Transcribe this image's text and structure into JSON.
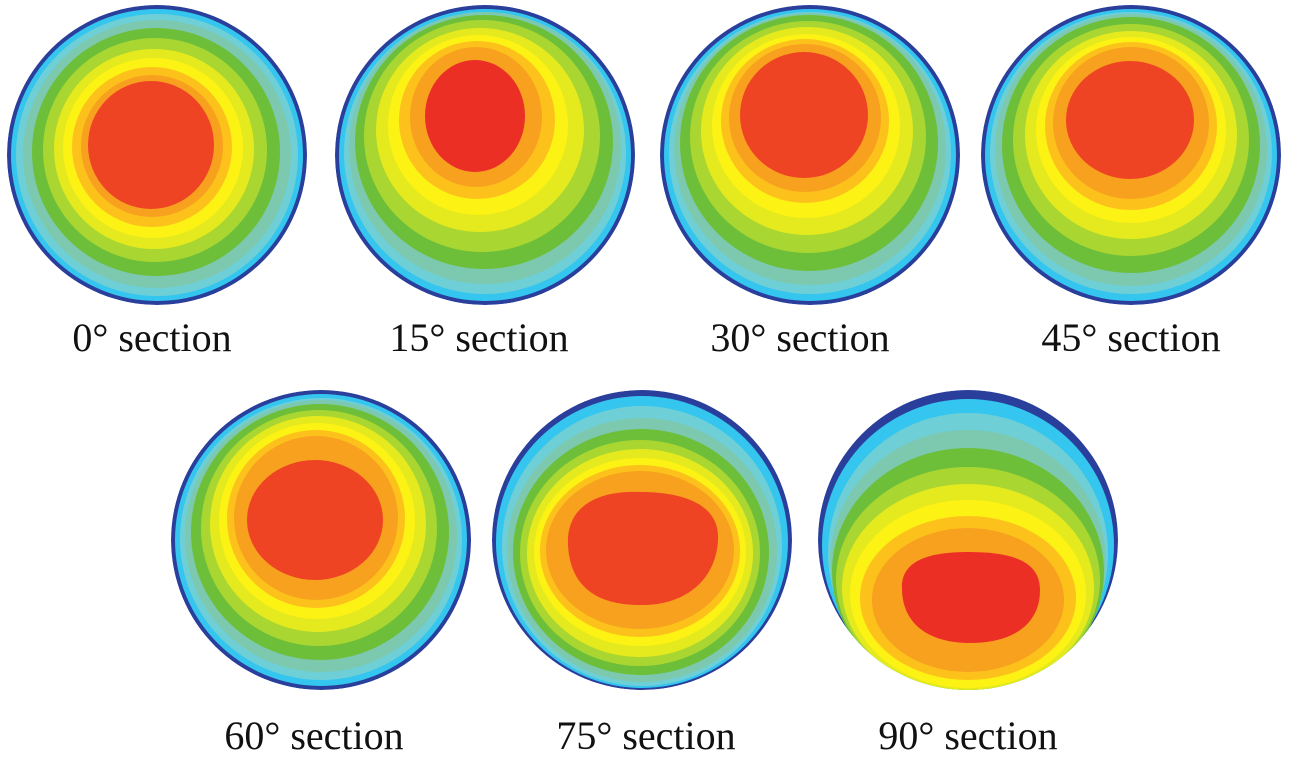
{
  "figure": {
    "sections": [
      {
        "caption": "0° section"
      },
      {
        "caption": "15° section"
      },
      {
        "caption": "30° section"
      },
      {
        "caption": "45° section"
      },
      {
        "caption": "60° section"
      },
      {
        "caption": "75° section"
      },
      {
        "caption": "90° section"
      }
    ]
  },
  "colors": {
    "ring_1_outer": "#2a3f9c",
    "ring_2": "#34c6ef",
    "ring_3": "#6fcfd6",
    "ring_4": "#7cc9b0",
    "ring_5": "#6dbf3a",
    "ring_6": "#a9d631",
    "ring_7": "#e4ea1e",
    "ring_8": "#fcf214",
    "ring_9": "#fcc21b",
    "ring_10": "#f7a11e",
    "core": "#ef4423",
    "core_dark": "#ec2f25"
  }
}
